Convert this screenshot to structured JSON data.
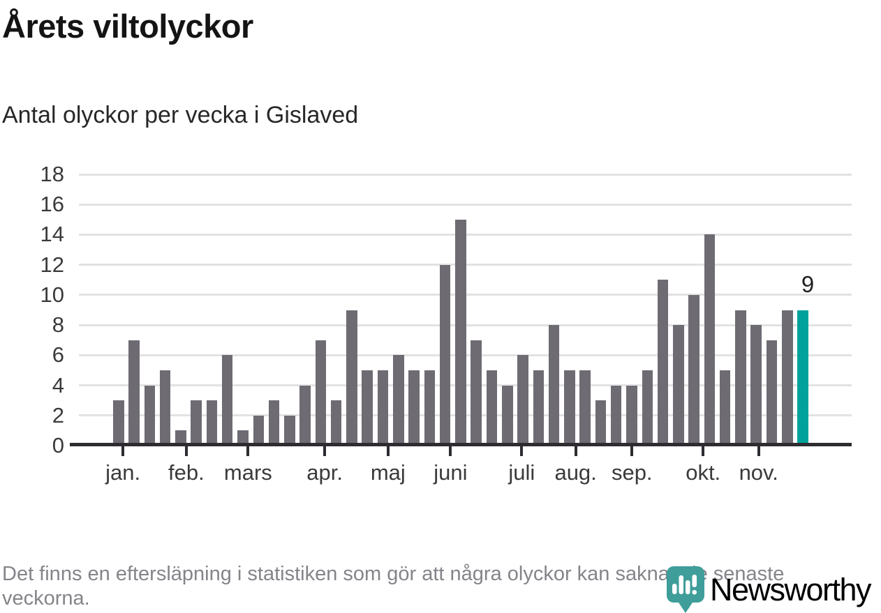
{
  "header": {
    "title": "Årets viltolyckor",
    "subtitle": "Antal olyckor per vecka i Gislaved"
  },
  "chart_data": {
    "type": "bar",
    "title": "Årets viltolyckor",
    "subtitle": "Antal olyckor per vecka i Gislaved",
    "x_unit": "vecka",
    "values": [
      3,
      7,
      4,
      5,
      1,
      3,
      3,
      6,
      1,
      2,
      3,
      2,
      4,
      7,
      3,
      9,
      5,
      5,
      6,
      5,
      5,
      12,
      15,
      7,
      5,
      4,
      6,
      5,
      8,
      5,
      5,
      3,
      4,
      4,
      5,
      11,
      8,
      10,
      14,
      5,
      9,
      8,
      7,
      9,
      9
    ],
    "weeks": [
      1,
      2,
      3,
      4,
      5,
      6,
      7,
      8,
      9,
      10,
      11,
      12,
      13,
      14,
      15,
      16,
      17,
      18,
      19,
      20,
      21,
      22,
      23,
      24,
      25,
      26,
      27,
      28,
      29,
      30,
      31,
      32,
      33,
      34,
      35,
      36,
      37,
      38,
      39,
      40,
      41,
      42,
      43,
      44,
      45
    ],
    "highlight_last_bar": true,
    "last_label": "9",
    "ylim": [
      0,
      18
    ],
    "yticks": [
      0,
      2,
      4,
      6,
      8,
      10,
      12,
      14,
      16,
      18
    ],
    "grid": true,
    "legend": false,
    "months": [
      "jan.",
      "feb.",
      "mars",
      "apr.",
      "maj",
      "juni",
      "juli",
      "aug.",
      "sep.",
      "okt.",
      "nov."
    ],
    "month_tick_x_pct": [
      6.8,
      14.9,
      22.8,
      32.6,
      40.7,
      48.7,
      57.8,
      64.7,
      71.9,
      81.0,
      88.1
    ],
    "colors": {
      "bar": "#6e6b73",
      "highlight": "#00a29b",
      "gridline": "#e2e2e2",
      "axis": "#2e2c31",
      "tick_label": "#3a3a3a"
    }
  },
  "footer": {
    "note": "Det finns en eftersläpning i statistiken som gör att några olyckor kan saknas de senaste veckorna."
  },
  "logo": {
    "wordmark": "Newsworthy",
    "icon": "newsworthy-pin-icon",
    "color": "#2f9e99"
  }
}
